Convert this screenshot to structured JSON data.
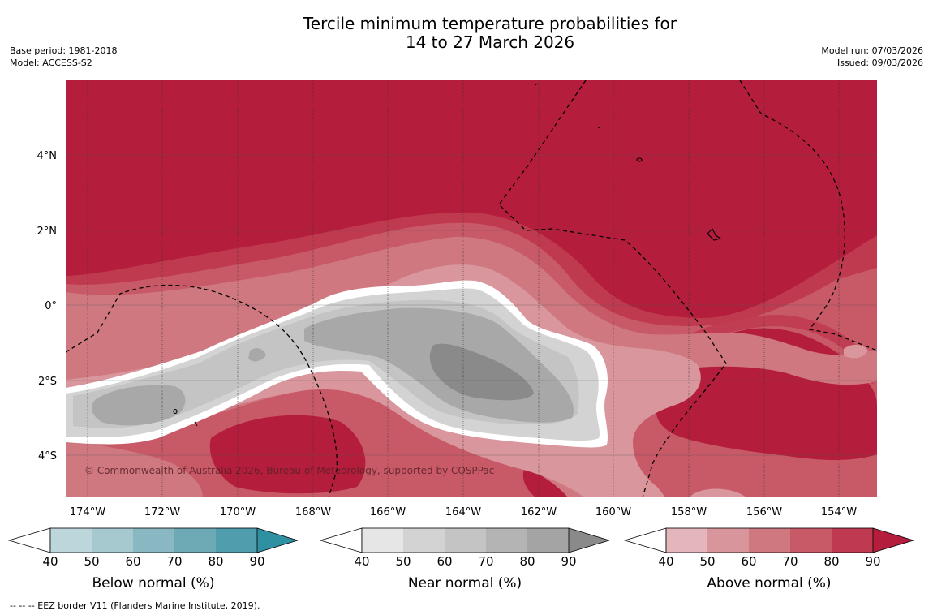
{
  "title": {
    "line1": "Tercile minimum temperature probabilities for",
    "line2": "14 to 27 March 2026"
  },
  "meta": {
    "base_period": "Base period: 1981-2018",
    "model": "Model: ACCESS-S2",
    "model_run": "Model run: 07/03/2026",
    "issued": "Issued: 09/03/2026"
  },
  "map": {
    "lon_labels": [
      "174°W",
      "172°W",
      "170°W",
      "168°W",
      "166°W",
      "164°W",
      "162°W",
      "160°W",
      "158°W",
      "156°W",
      "154°W"
    ],
    "lat_labels": [
      "4°N",
      "2°N",
      "0°",
      "2°S",
      "4°S"
    ],
    "copyright": "© Commonwealth of Australia 2026, Bureau of Meteorology, supported by COSPPac",
    "colors": {
      "above_90": "#b41e3c",
      "above_80": "#c03a4f",
      "above_70": "#c85a68",
      "above_60": "#cf7880",
      "above_50": "#d9969d",
      "near_60": "#d3d3d3",
      "near_70": "#c4c4c4",
      "near_80": "#a8a8a8",
      "near_90": "#8a8a8a"
    }
  },
  "colorbars": [
    {
      "label": "Below normal (%)",
      "ticks": [
        "40",
        "50",
        "60",
        "70",
        "80",
        "90"
      ],
      "colors": [
        "#bdd6dc",
        "#a5c9cf",
        "#8ab8c2",
        "#6eaab6",
        "#4f9dad",
        "#2f90a2"
      ]
    },
    {
      "label": "Near normal (%)",
      "ticks": [
        "40",
        "50",
        "60",
        "70",
        "80",
        "90"
      ],
      "colors": [
        "#e6e6e6",
        "#d3d3d3",
        "#c4c4c4",
        "#b4b4b4",
        "#a4a4a4",
        "#8a8a8a"
      ]
    },
    {
      "label": "Above normal (%)",
      "ticks": [
        "40",
        "50",
        "60",
        "70",
        "80",
        "90"
      ],
      "colors": [
        "#e2b6bb",
        "#d8959c",
        "#cf7880",
        "#c85a68",
        "#bf3a50",
        "#b41e3c"
      ]
    }
  ],
  "eez_legend": "-- -- -- EEZ border V11 (Flanders Marine Institute, 2019)."
}
